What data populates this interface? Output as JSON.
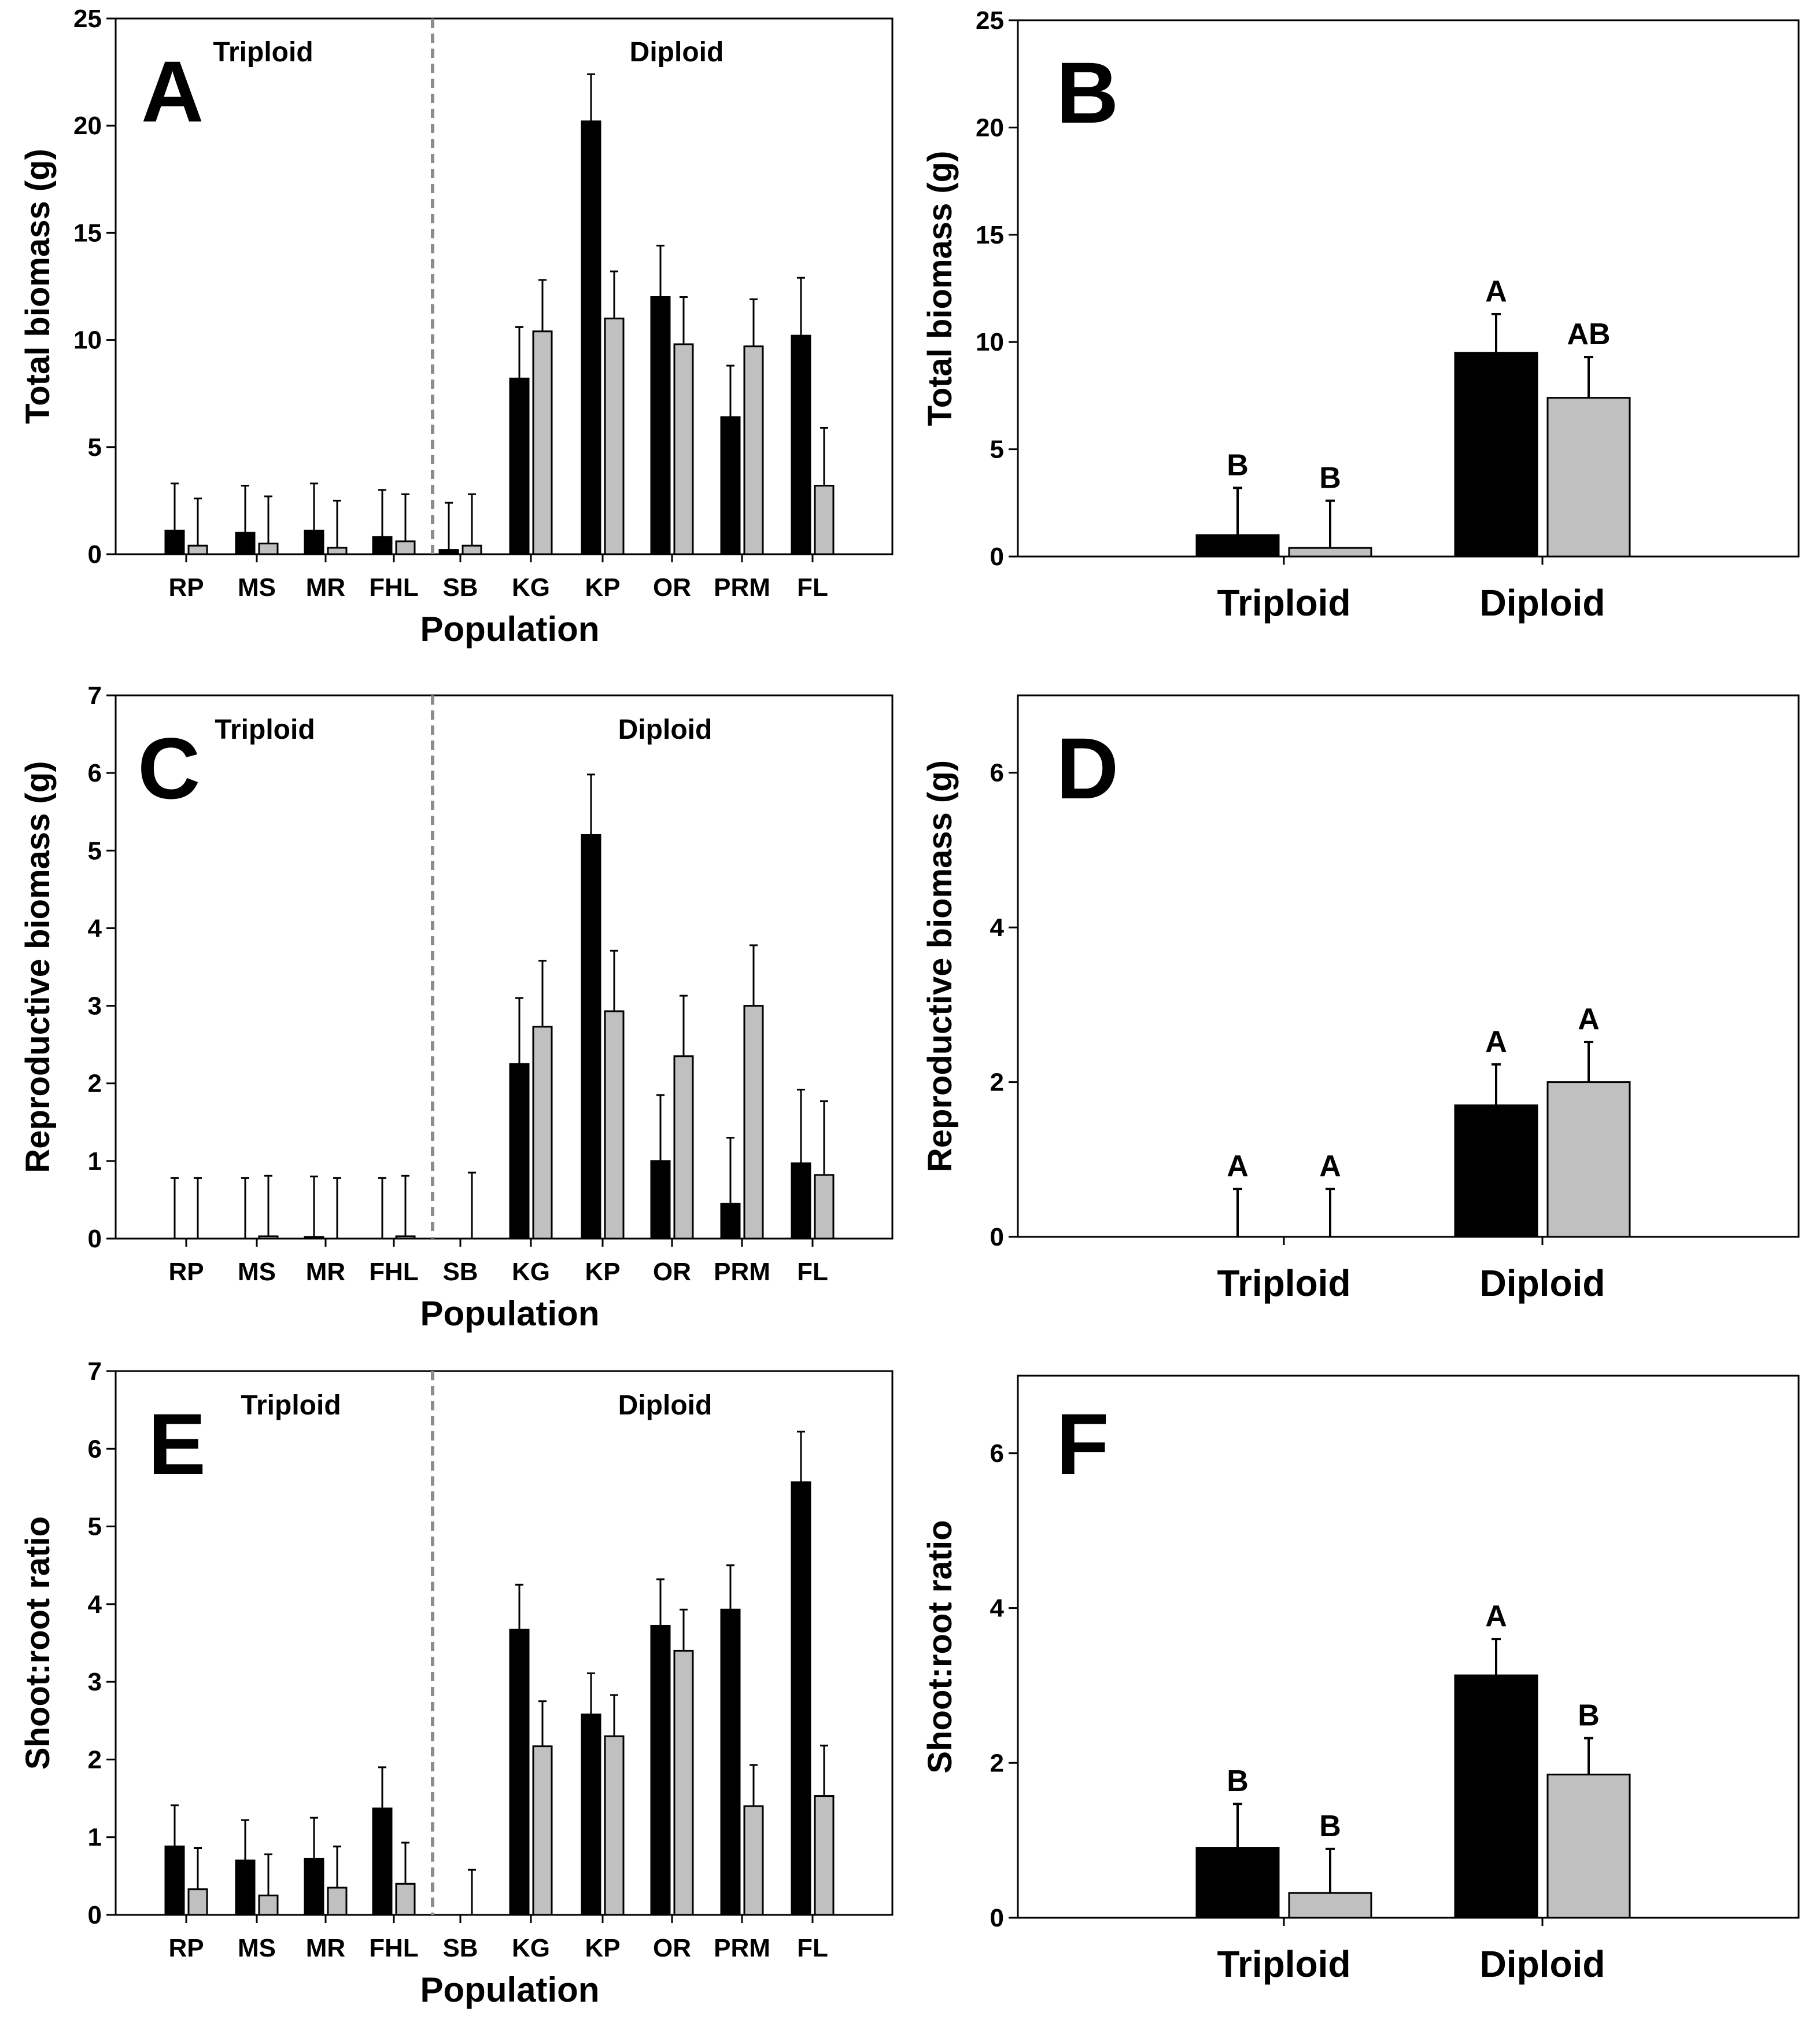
{
  "colors": {
    "series_1": "#000000",
    "series_2": "#c0c0c0",
    "divider": "#8c8c8c",
    "axis": "#000000"
  },
  "chart_data": [
    {
      "panel": "A",
      "type": "bar",
      "ylabel": "Total biomass (g)",
      "xlabel": "Population",
      "ylim": [
        0,
        25
      ],
      "yticks": [
        0,
        5,
        10,
        15,
        20,
        25
      ],
      "group_labels": [
        "Triploid",
        "Diploid"
      ],
      "divider_after": 4,
      "categories": [
        "RP",
        "MS",
        "MR",
        "FHL",
        "SB",
        "KG",
        "KP",
        "OR",
        "PRM",
        "FL"
      ],
      "series": [
        {
          "name": "series_1",
          "values": [
            1.1,
            1.0,
            1.1,
            0.8,
            0.2,
            8.2,
            20.2,
            12.0,
            6.4,
            10.2
          ],
          "errors": [
            2.2,
            2.2,
            2.2,
            2.2,
            2.2,
            2.4,
            2.2,
            2.4,
            2.4,
            2.7
          ]
        },
        {
          "name": "series_2",
          "values": [
            0.4,
            0.5,
            0.3,
            0.6,
            0.4,
            10.4,
            11.0,
            9.8,
            9.7,
            3.2
          ],
          "errors": [
            2.2,
            2.2,
            2.2,
            2.2,
            2.4,
            2.4,
            2.2,
            2.2,
            2.2,
            2.7
          ]
        }
      ]
    },
    {
      "panel": "B",
      "type": "bar",
      "ylabel": "Total biomass (g)",
      "xlabel": "",
      "ylim": [
        0,
        25
      ],
      "yticks": [
        0,
        5,
        10,
        15,
        20,
        25
      ],
      "categories": [
        "Triploid",
        "Diploid"
      ],
      "series": [
        {
          "name": "series_1",
          "values": [
            1.0,
            9.5
          ],
          "errors": [
            2.2,
            1.8
          ],
          "letters": [
            "B",
            "A"
          ]
        },
        {
          "name": "series_2",
          "values": [
            0.4,
            7.4
          ],
          "errors": [
            2.2,
            1.9
          ],
          "letters": [
            "B",
            "AB"
          ]
        }
      ]
    },
    {
      "panel": "C",
      "type": "bar",
      "ylabel": "Reproductive biomass (g)",
      "xlabel": "Population",
      "ylim": [
        0,
        7
      ],
      "yticks": [
        0,
        1,
        2,
        3,
        4,
        5,
        6,
        7
      ],
      "group_labels": [
        "Triploid",
        "Diploid"
      ],
      "divider_after": 4,
      "categories": [
        "RP",
        "MS",
        "MR",
        "FHL",
        "SB",
        "KG",
        "KP",
        "OR",
        "PRM",
        "FL"
      ],
      "series": [
        {
          "name": "series_1",
          "values": [
            0,
            0,
            0.02,
            0,
            0,
            2.25,
            5.2,
            1.0,
            0.45,
            0.97
          ],
          "errors": [
            0.78,
            0.78,
            0.78,
            0.78,
            0,
            0.85,
            0.78,
            0.85,
            0.85,
            0.95
          ]
        },
        {
          "name": "series_2",
          "values": [
            0,
            0.03,
            0,
            0.03,
            0,
            2.73,
            2.93,
            2.35,
            3.0,
            0.82
          ],
          "errors": [
            0.78,
            0.78,
            0.78,
            0.78,
            0.85,
            0.85,
            0.78,
            0.78,
            0.78,
            0.95
          ]
        }
      ]
    },
    {
      "panel": "D",
      "type": "bar",
      "ylabel": "Reproductive biomass (g)",
      "xlabel": "",
      "ylim": [
        0,
        7
      ],
      "yticks": [
        0,
        2,
        4,
        6
      ],
      "categories": [
        "Triploid",
        "Diploid"
      ],
      "series": [
        {
          "name": "series_1",
          "values": [
            0,
            1.7
          ],
          "errors": [
            0.62,
            0.53
          ],
          "letters": [
            "A",
            "A"
          ]
        },
        {
          "name": "series_2",
          "values": [
            0,
            2.0
          ],
          "errors": [
            0.62,
            0.52
          ],
          "letters": [
            "A",
            "A"
          ]
        }
      ]
    },
    {
      "panel": "E",
      "type": "bar",
      "ylabel": "Shoot:root ratio",
      "xlabel": "Population",
      "ylim": [
        0,
        7
      ],
      "yticks": [
        0,
        1,
        2,
        3,
        4,
        5,
        6,
        7
      ],
      "group_labels": [
        "Triploid",
        "Diploid"
      ],
      "divider_after": 4,
      "categories": [
        "RP",
        "MS",
        "MR",
        "FHL",
        "SB",
        "KG",
        "KP",
        "OR",
        "PRM",
        "FL"
      ],
      "series": [
        {
          "name": "series_1",
          "values": [
            0.88,
            0.7,
            0.72,
            1.37,
            0,
            3.67,
            2.58,
            3.72,
            3.93,
            5.57
          ],
          "errors": [
            0.53,
            0.52,
            0.53,
            0.53,
            0,
            0.58,
            0.53,
            0.6,
            0.57,
            0.65
          ]
        },
        {
          "name": "series_2",
          "values": [
            0.33,
            0.25,
            0.35,
            0.4,
            0,
            2.17,
            2.3,
            3.4,
            1.4,
            1.53
          ],
          "errors": [
            0.53,
            0.53,
            0.53,
            0.53,
            0.58,
            0.58,
            0.53,
            0.53,
            0.53,
            0.65
          ]
        }
      ]
    },
    {
      "panel": "F",
      "type": "bar",
      "ylabel": "Shoot:root ratio",
      "xlabel": "",
      "ylim": [
        0,
        7
      ],
      "yticks": [
        0,
        2,
        4,
        6
      ],
      "categories": [
        "Triploid",
        "Diploid"
      ],
      "series": [
        {
          "name": "series_1",
          "values": [
            0.9,
            3.13
          ],
          "errors": [
            0.57,
            0.47
          ],
          "letters": [
            "B",
            "A"
          ]
        },
        {
          "name": "series_2",
          "values": [
            0.32,
            1.85
          ],
          "errors": [
            0.57,
            0.47
          ],
          "letters": [
            "B",
            "B"
          ]
        }
      ]
    }
  ]
}
